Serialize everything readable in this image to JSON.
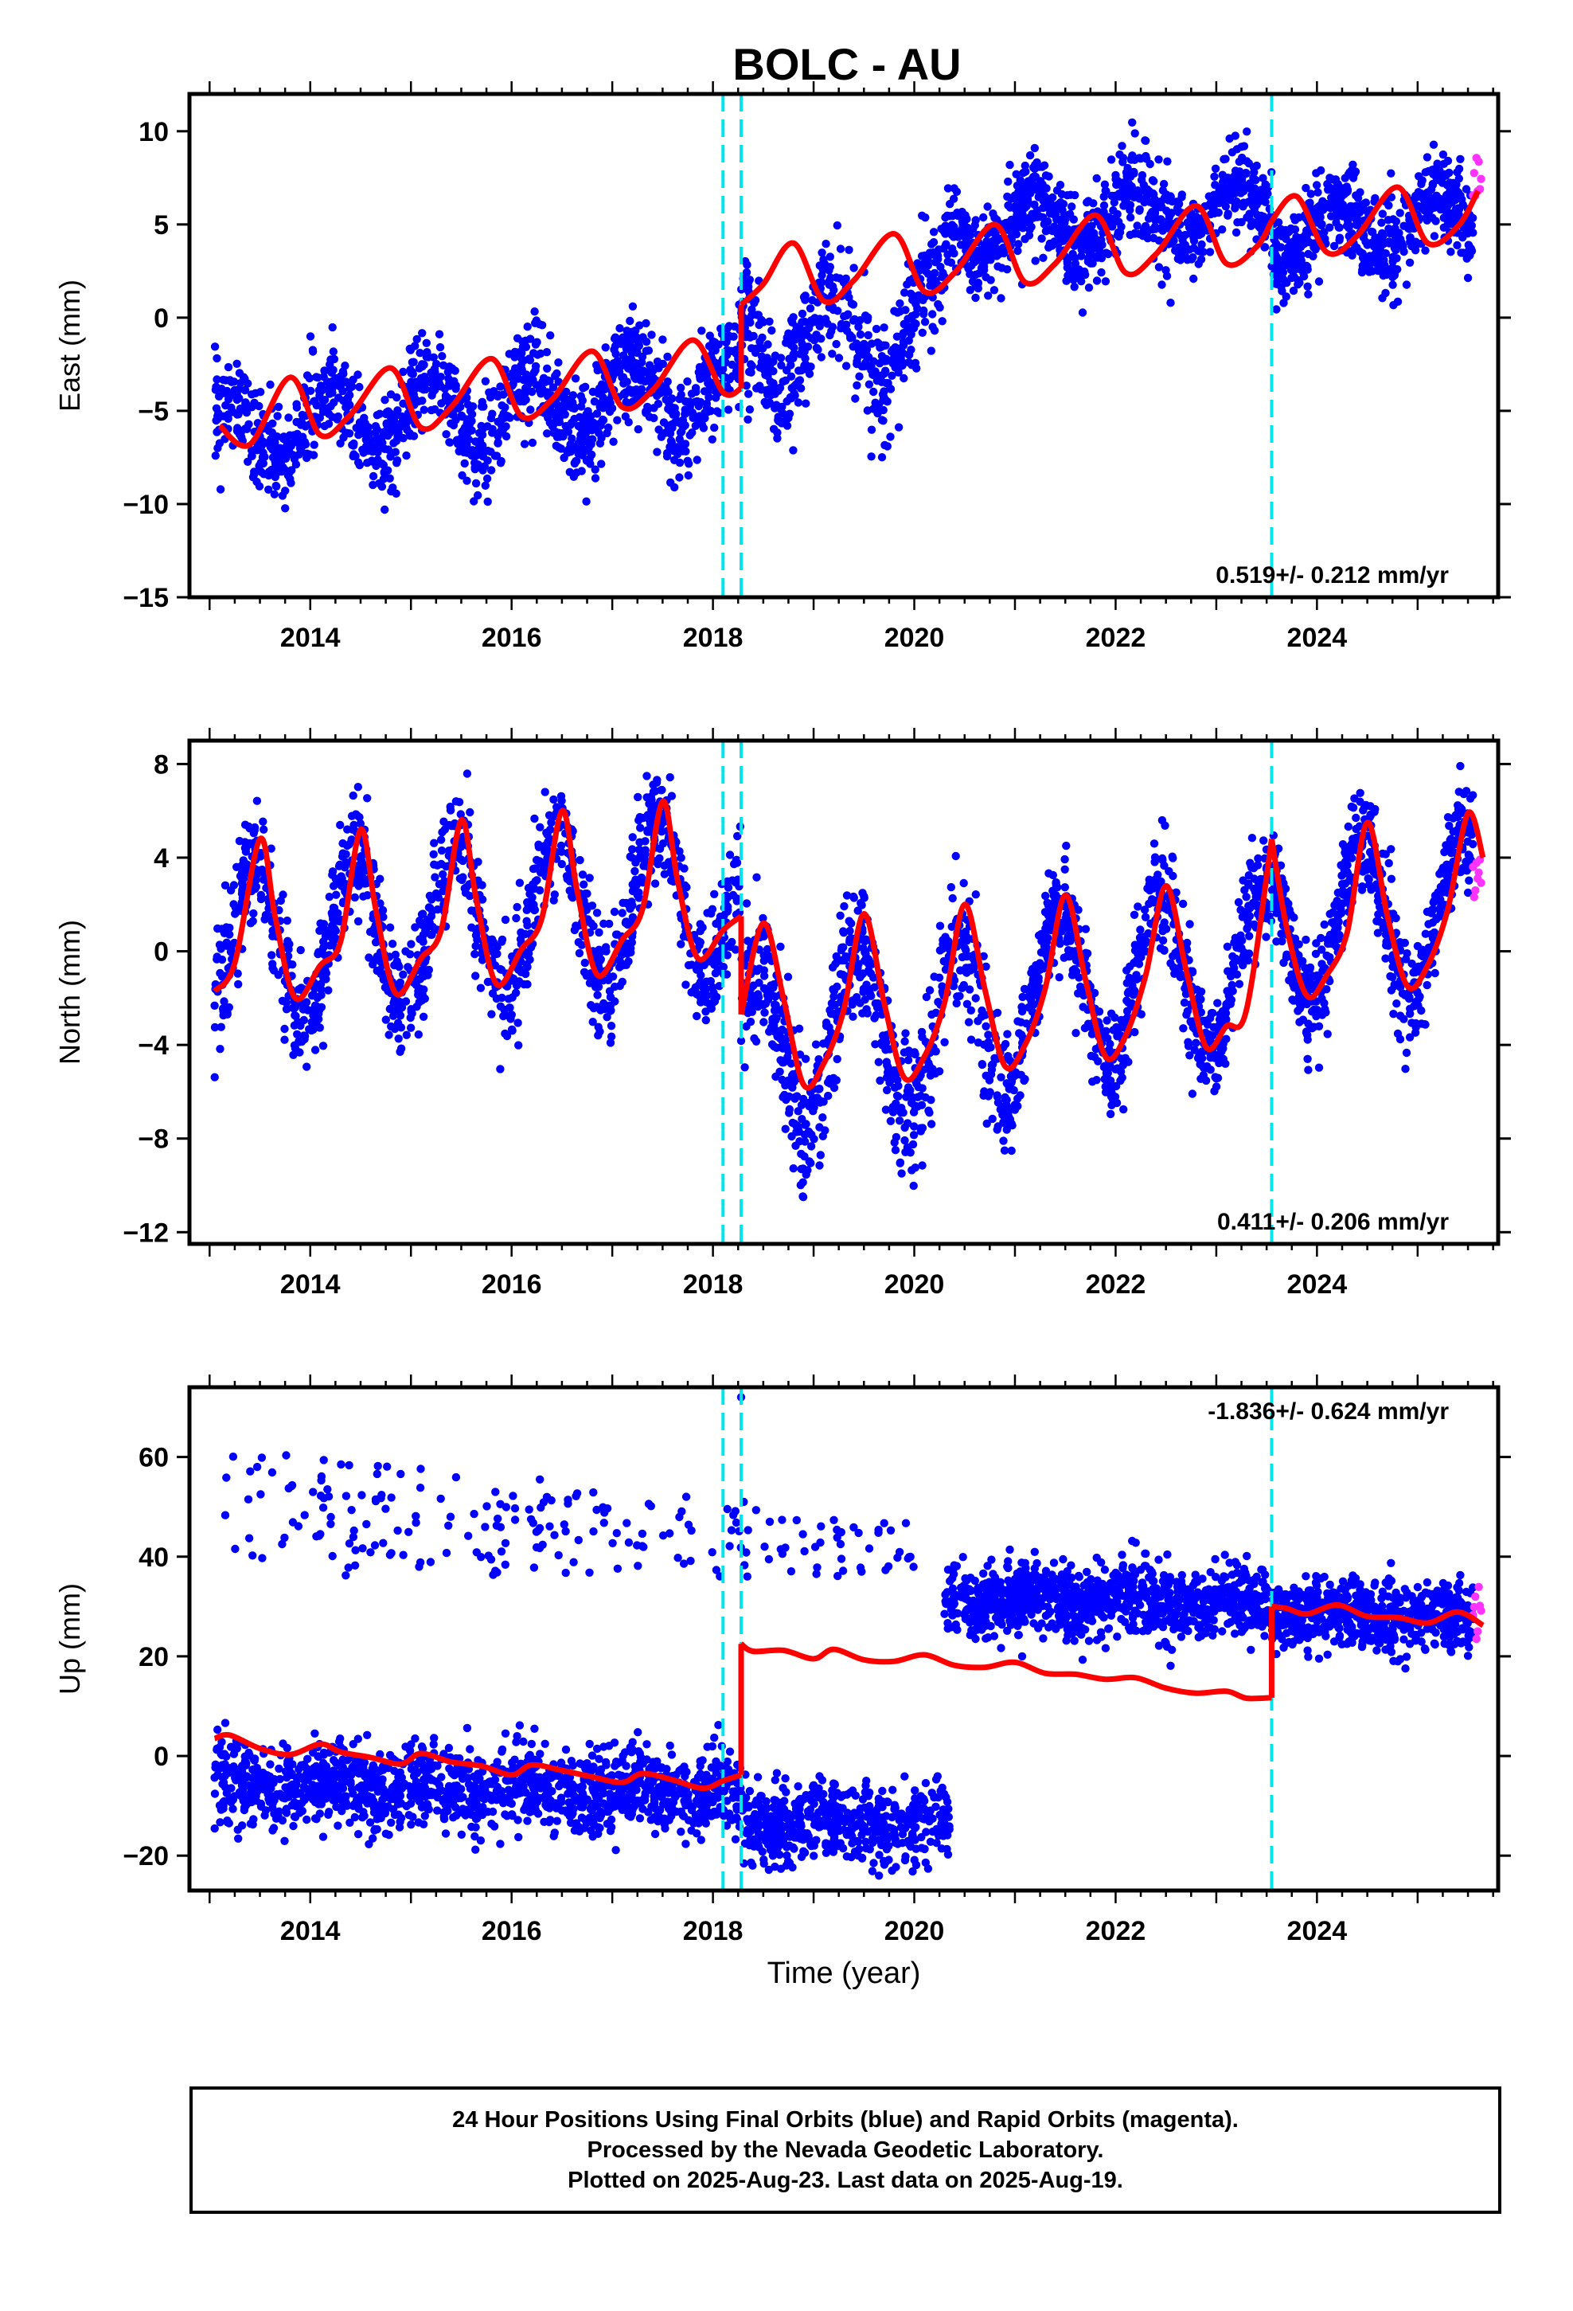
{
  "chart_data": {
    "title": "BOLC - AU",
    "colors": {
      "final_orbits": "#0000ff",
      "rapid_orbits": "#ff33ff",
      "model": "#ff0000",
      "offsets": "#00e5ee"
    },
    "x_axis": {
      "label": "Time (year)",
      "range": [
        2012.8,
        2025.8
      ],
      "ticks": [
        2014,
        2016,
        2018,
        2020,
        2022,
        2024
      ]
    },
    "offset_epochs": [
      2018.1,
      2018.28,
      2023.55
    ],
    "panels": [
      {
        "type": "scatter",
        "ylabel": "East (mm)",
        "ylim": [
          -15,
          12
        ],
        "yticks": [
          -15,
          -10,
          -5,
          0,
          5,
          10
        ],
        "rate_label": "0.519+/- 0.212 mm/yr",
        "rate_position": "bottom-right",
        "model_segments": [
          {
            "x": [
              2013.1,
              2013.4,
              2013.8,
              2014.1,
              2014.4,
              2014.8,
              2015.1,
              2015.4,
              2015.8,
              2016.1,
              2016.4,
              2016.8,
              2017.1,
              2017.4,
              2017.8,
              2018.1,
              2018.28
            ],
            "y": [
              -5.8,
              -6.8,
              -3.2,
              -6.3,
              -5.2,
              -2.7,
              -5.9,
              -4.8,
              -2.2,
              -5.3,
              -4.4,
              -1.8,
              -4.8,
              -3.9,
              -1.2,
              -4.0,
              -3.8
            ]
          },
          {
            "x": [
              2018.28,
              2018.5,
              2018.8,
              2019.1,
              2019.4,
              2019.8,
              2020.1,
              2020.4,
              2020.8,
              2021.1,
              2021.4,
              2021.8,
              2022.1,
              2022.4,
              2022.8,
              2023.1,
              2023.4,
              2023.55
            ],
            "y": [
              0.7,
              1.8,
              4.0,
              0.9,
              2.0,
              4.5,
              1.4,
              2.4,
              5.0,
              1.9,
              2.9,
              5.5,
              2.4,
              3.4,
              6.0,
              2.9,
              3.8,
              5.2
            ]
          },
          {
            "x": [
              2023.55,
              2023.8,
              2024.1,
              2024.4,
              2024.8,
              2025.1,
              2025.4,
              2025.6
            ],
            "y": [
              5.2,
              6.5,
              3.5,
              4.4,
              7.0,
              4.0,
              4.9,
              6.8
            ]
          }
        ],
        "data_segments": [
          {
            "x0": 2013.05,
            "x1": 2018.28,
            "baseline": -5.0,
            "amp": 1.8,
            "trend": 0.5,
            "noise": 1.3,
            "n": 1300
          },
          {
            "x0": 2018.28,
            "x1": 2020.3,
            "baseline": -1.0,
            "amp": 2.5,
            "trend": 0.5,
            "noise": 1.6,
            "n": 500
          },
          {
            "x0": 2020.3,
            "x1": 2023.55,
            "baseline": 5.3,
            "amp": 1.3,
            "trend": 0.5,
            "noise": 1.2,
            "n": 900
          },
          {
            "x0": 2023.55,
            "x1": 2025.55,
            "baseline": 4.8,
            "amp": 1.5,
            "trend": 0.5,
            "noise": 1.2,
            "n": 600
          }
        ],
        "rapid_points": {
          "x0": 2025.55,
          "x1": 2025.63,
          "y_min": 6.0,
          "y_max": 9.5,
          "n": 8
        }
      },
      {
        "type": "scatter",
        "ylabel": "North (mm)",
        "ylim": [
          -12.5,
          9
        ],
        "yticks": [
          -12,
          -8,
          -4,
          0,
          4,
          8
        ],
        "rate_label": "0.411+/- 0.206 mm/yr",
        "rate_position": "bottom-right",
        "model_segments": [
          {
            "x": [
              2013.05,
              2013.25,
              2013.5,
              2013.65,
              2013.85,
              2014.1,
              2014.3,
              2014.5,
              2014.65,
              2014.85,
              2015.1,
              2015.3,
              2015.5,
              2015.65,
              2015.85,
              2016.1,
              2016.3,
              2016.5,
              2016.65,
              2016.85,
              2017.1,
              2017.3,
              2017.5,
              2017.65,
              2017.85,
              2018.1,
              2018.28
            ],
            "y": [
              -1.7,
              -0.5,
              4.8,
              1.5,
              -2.0,
              -0.6,
              0.4,
              5.2,
              1.8,
              -1.8,
              -0.3,
              0.9,
              5.6,
              2.2,
              -1.4,
              0.1,
              1.4,
              6.0,
              2.6,
              -1.0,
              0.5,
              1.8,
              6.4,
              3.0,
              -0.3,
              0.9,
              1.5
            ]
          },
          {
            "x": [
              2018.28,
              2018.5,
              2018.7,
              2018.9,
              2019.1,
              2019.3,
              2019.5,
              2019.7,
              2019.9,
              2020.1,
              2020.3,
              2020.5,
              2020.7,
              2020.9,
              2021.1,
              2021.3,
              2021.5,
              2021.7,
              2021.9,
              2022.1,
              2022.3,
              2022.5,
              2022.7,
              2022.9,
              2023.1,
              2023.3,
              2023.55
            ],
            "y": [
              -2.7,
              1.2,
              -2.0,
              -5.7,
              -4.8,
              -2.5,
              1.6,
              -2.2,
              -5.4,
              -4.5,
              -2.2,
              2.0,
              -1.6,
              -4.9,
              -4.0,
              -1.6,
              2.4,
              -1.2,
              -4.5,
              -3.6,
              -1.0,
              2.8,
              -0.8,
              -4.1,
              -3.2,
              -2.5,
              4.8
            ]
          },
          {
            "x": [
              2023.55,
              2023.7,
              2023.9,
              2024.1,
              2024.3,
              2024.5,
              2024.7,
              2024.9,
              2025.1,
              2025.3,
              2025.5,
              2025.65
            ],
            "y": [
              4.8,
              1.0,
              -1.9,
              -1.0,
              0.8,
              5.5,
              1.5,
              -1.5,
              -0.6,
              1.8,
              5.9,
              4.0
            ]
          }
        ],
        "data_segments": [
          {
            "x0": 2013.05,
            "x1": 2018.28,
            "baseline": 1.3,
            "amp": 3.4,
            "trend": 0.4,
            "noise": 1.2,
            "n": 1300
          },
          {
            "x0": 2018.28,
            "x1": 2021.0,
            "baseline": -3.5,
            "amp": 3.6,
            "trend": 0.4,
            "noise": 1.5,
            "n": 700
          },
          {
            "x0": 2021.0,
            "x1": 2023.55,
            "baseline": -1.2,
            "amp": 3.3,
            "trend": 0.4,
            "noise": 1.1,
            "n": 700
          },
          {
            "x0": 2023.55,
            "x1": 2025.55,
            "baseline": 1.3,
            "amp": 3.4,
            "trend": 0.4,
            "noise": 1.1,
            "n": 600
          }
        ],
        "rapid_points": {
          "x0": 2025.55,
          "x1": 2025.63,
          "y_min": 1.3,
          "y_max": 4.0,
          "n": 8
        }
      },
      {
        "type": "scatter",
        "ylabel": "Up (mm)",
        "ylim": [
          -27,
          74
        ],
        "yticks": [
          -20,
          0,
          20,
          40,
          60
        ],
        "rate_label": "-1.836+/- 0.624 mm/yr",
        "rate_position": "top-right",
        "model_segments": [
          {
            "x": [
              2013.05,
              2013.2,
              2013.5,
              2013.8,
              2014.1,
              2014.3,
              2014.6,
              2014.9,
              2015.1,
              2015.4,
              2015.7,
              2016.0,
              2016.2,
              2016.5,
              2016.8,
              2017.1,
              2017.3,
              2017.6,
              2017.9,
              2018.1,
              2018.28
            ],
            "y": [
              3.5,
              4.2,
              1.5,
              0.3,
              2.4,
              0.8,
              -0.3,
              -1.6,
              0.5,
              -1.2,
              -2.0,
              -3.8,
              -1.8,
              -2.9,
              -4.2,
              -5.3,
              -3.5,
              -4.8,
              -6.5,
              -5.0,
              -3.8
            ]
          },
          {
            "x": [
              2018.28,
              2018.4,
              2018.7,
              2019.0,
              2019.2,
              2019.5,
              2019.8,
              2020.1,
              2020.4,
              2020.7,
              2021.0,
              2021.3,
              2021.6,
              2021.9,
              2022.2,
              2022.5,
              2022.8,
              2023.1,
              2023.3,
              2023.55
            ],
            "y": [
              22.5,
              21.0,
              21.2,
              19.5,
              21.4,
              19.3,
              19.0,
              20.3,
              18.2,
              17.8,
              18.8,
              16.6,
              16.4,
              15.4,
              15.7,
              13.6,
              12.6,
              13.0,
              11.6,
              11.7
            ]
          },
          {
            "x": [
              2023.55,
              2023.7,
              2023.9,
              2024.2,
              2024.5,
              2024.8,
              2025.1,
              2025.4,
              2025.65
            ],
            "y": [
              30.0,
              29.6,
              28.5,
              30.3,
              28.0,
              27.8,
              26.7,
              28.9,
              26.2
            ]
          }
        ],
        "data_segments": [
          {
            "x0": 2013.05,
            "x1": 2018.28,
            "baseline": -6.5,
            "amp": 1.0,
            "trend": -0.5,
            "noise": 4.0,
            "n": 1400
          },
          {
            "x0": 2018.28,
            "x1": 2020.35,
            "baseline": -13.5,
            "amp": 1.0,
            "trend": -0.5,
            "noise": 4.0,
            "n": 550
          },
          {
            "x0": 2020.3,
            "x1": 2023.55,
            "baseline": 31.0,
            "amp": 1.0,
            "trend": -0.5,
            "noise": 3.6,
            "n": 1000
          },
          {
            "x0": 2023.55,
            "x1": 2025.55,
            "baseline": 28.0,
            "amp": 1.0,
            "trend": -0.5,
            "noise": 3.3,
            "n": 650
          }
        ],
        "outlier_cluster": {
          "x0": 2013.1,
          "x1": 2020.0,
          "y_min": 36,
          "y_max": 62,
          "n": 220
        },
        "outlier_points": [
          {
            "x": 2018.28,
            "y": 72
          }
        ],
        "rapid_points": {
          "x0": 2025.55,
          "x1": 2025.63,
          "y_min": 22,
          "y_max": 34,
          "n": 8
        }
      }
    ],
    "footer_lines": [
      "24 Hour Positions Using Final Orbits (blue) and Rapid Orbits (magenta).",
      "Processed by the Nevada Geodetic Laboratory.",
      "Plotted on 2025-Aug-23. Last data on 2025-Aug-19."
    ]
  }
}
